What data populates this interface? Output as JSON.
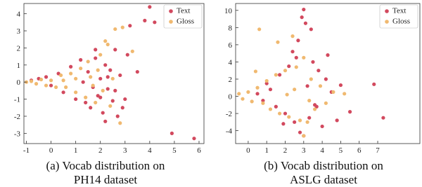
{
  "chart_data": [
    {
      "type": "scatter",
      "caption": [
        "(a) Vocab distribution on",
        "PH14 dataset"
      ],
      "xlim": [
        -1.1,
        6.2
      ],
      "ylim": [
        -3.6,
        4.6
      ],
      "xticks": [
        -1,
        0,
        1,
        2,
        3,
        4,
        5,
        6
      ],
      "yticks": [
        -3,
        -2,
        -1,
        0,
        1,
        2,
        3,
        4
      ],
      "legend": "upper right",
      "series": [
        {
          "name": "Text",
          "color": "#d2495e",
          "x": [
            -0.8,
            -0.5,
            -0.2,
            0,
            0.3,
            0.5,
            0.8,
            1,
            1.2,
            1.4,
            1.5,
            1.6,
            1.8,
            1.9,
            2,
            2.1,
            2.2,
            2.3,
            2.4,
            2.5,
            2.6,
            2.7,
            2.8,
            3,
            3.2,
            3.5,
            3.8,
            4,
            4.2,
            4.9,
            5.8,
            1.7,
            2.0,
            2.3,
            1.3,
            2.6,
            2.9,
            3.1,
            1.8,
            2.2
          ],
          "y": [
            0.1,
            0.2,
            0.3,
            -0.2,
            0.5,
            -0.6,
            0.9,
            -1.0,
            1.3,
            -1.2,
            0.6,
            -1.5,
            1.4,
            -0.8,
            0.2,
            -1.8,
            1.0,
            -0.4,
            0.7,
            -1.1,
            1.9,
            -2.0,
            0.4,
            -1.0,
            3.3,
            0.6,
            3.6,
            4.4,
            3.5,
            -3.0,
            -3.3,
            -0.3,
            -0.9,
            0.3,
            0.0,
            -0.5,
            -1.5,
            1.6,
            1.9,
            -2.3
          ]
        },
        {
          "name": "Gloss",
          "color": "#f0b970",
          "x": [
            -1,
            -0.8,
            -0.6,
            -0.4,
            -0.2,
            0,
            0.2,
            0.4,
            0.6,
            0.8,
            1,
            1.2,
            1.4,
            1.5,
            1.6,
            1.8,
            2,
            2.1,
            2.2,
            2.4,
            2.5,
            2.6,
            2.9,
            3.3,
            2.8,
            1.0,
            0.5,
            1.7,
            1.9,
            2.3
          ],
          "y": [
            0,
            0.05,
            -0.1,
            0.15,
            -0.2,
            0.1,
            -0.3,
            0.4,
            -0.3,
            0.5,
            -0.6,
            0.8,
            -0.9,
            1.2,
            0.3,
            -1.2,
            1.6,
            -0.5,
            2.4,
            -1.4,
            0.2,
            3.1,
            3.2,
            1.8,
            -2.4,
            0.2,
            0.1,
            -0.2,
            0.7,
            2.2
          ]
        }
      ]
    },
    {
      "type": "scatter",
      "caption": [
        "(b) Vocab distribution on",
        "ASLG dataset"
      ],
      "xlim": [
        -0.68,
        9.28
      ],
      "ylim": [
        -5.5,
        10.8
      ],
      "xticks": [
        0,
        1,
        2,
        3,
        4,
        5,
        6,
        7
      ],
      "yticks": [
        -4,
        -2,
        0,
        2,
        4,
        6,
        8,
        10
      ],
      "legend": "upper right",
      "series": [
        {
          "name": "Text",
          "color": "#d2495e",
          "x": [
            0.5,
            0.8,
            1,
            1.2,
            1.5,
            1.7,
            2,
            2.2,
            2.4,
            2.5,
            2.7,
            2.8,
            3,
            3.1,
            3.2,
            3.3,
            3.5,
            3.6,
            3.8,
            4,
            4.2,
            4.5,
            4.8,
            5,
            5.5,
            6.8,
            7.3,
            2.9,
            3.4,
            3.0,
            2.6,
            1.9,
            4.3,
            3.7
          ],
          "y": [
            0.3,
            -0.5,
            1.5,
            0.8,
            -1.2,
            2.5,
            -2,
            3.5,
            5.2,
            -3,
            6.5,
            -4.2,
            10.1,
            8.5,
            1.2,
            -2.5,
            4,
            -1,
            3,
            -3.5,
            2,
            0.5,
            -2.8,
            1.3,
            -1.8,
            1.4,
            -2.5,
            9.2,
            7.8,
            -4.6,
            4.5,
            -3.2,
            4.8,
            -1.2
          ]
        },
        {
          "name": "Gloss",
          "color": "#f0b970",
          "x": [
            -0.5,
            -0.3,
            0,
            0.2,
            0.5,
            0.6,
            0.8,
            1,
            1.2,
            1.5,
            1.7,
            2,
            2.2,
            2.4,
            2.6,
            2.8,
            3,
            3.2,
            3.4,
            3.6,
            3.9,
            4.2,
            4.6,
            5.2,
            1.6,
            3.0,
            0.4,
            2.1,
            2.5,
            3.3
          ],
          "y": [
            0.3,
            -0.3,
            0.5,
            -0.6,
            1,
            7.8,
            -0.8,
            1.8,
            -1.5,
            2.5,
            -2,
            3,
            -2.4,
            7,
            3.4,
            -2.8,
            4.5,
            -3,
            2,
            -1.5,
            1.2,
            -0.8,
            0.5,
            0.3,
            6.3,
            -4.6,
            2.9,
            0.2,
            0.8,
            -0.5
          ]
        }
      ]
    }
  ]
}
